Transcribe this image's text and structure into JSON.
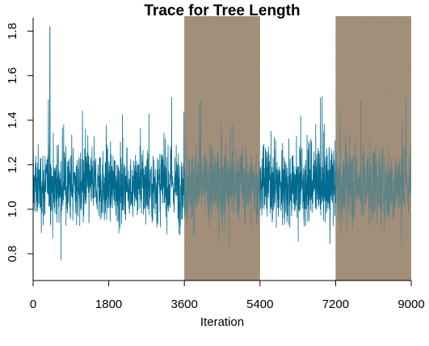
{
  "chart_data": {
    "type": "line",
    "title": "Trace for Tree Length",
    "xlabel": "Iteration",
    "ylabel": "",
    "xlim": [
      0,
      9000
    ],
    "ylim": [
      0.68,
      1.86
    ],
    "x_ticks": [
      0,
      1800,
      3600,
      5400,
      7200,
      9000
    ],
    "x_tick_labels": [
      "0",
      "1800",
      "3600",
      "5400",
      "7200",
      "9000"
    ],
    "y_ticks": [
      0.8,
      1.0,
      1.2,
      1.4,
      1.6,
      1.8
    ],
    "y_tick_labels": [
      "0.8",
      "1.0",
      "1.2",
      "1.4",
      "1.6",
      "1.8"
    ],
    "grid": false,
    "series": [
      {
        "color": "#006b8f",
        "points_count": 9000,
        "mean": 1.11,
        "typical_range": [
          0.9,
          1.35
        ],
        "extremes": {
          "min": 0.74,
          "max": 1.82,
          "max_at_iteration": 400
        }
      }
    ],
    "shaded_regions": [
      {
        "x": [
          3600,
          5400
        ],
        "color": "#a89580"
      },
      {
        "x": [
          7200,
          9000
        ],
        "color": "#a89580"
      }
    ]
  }
}
